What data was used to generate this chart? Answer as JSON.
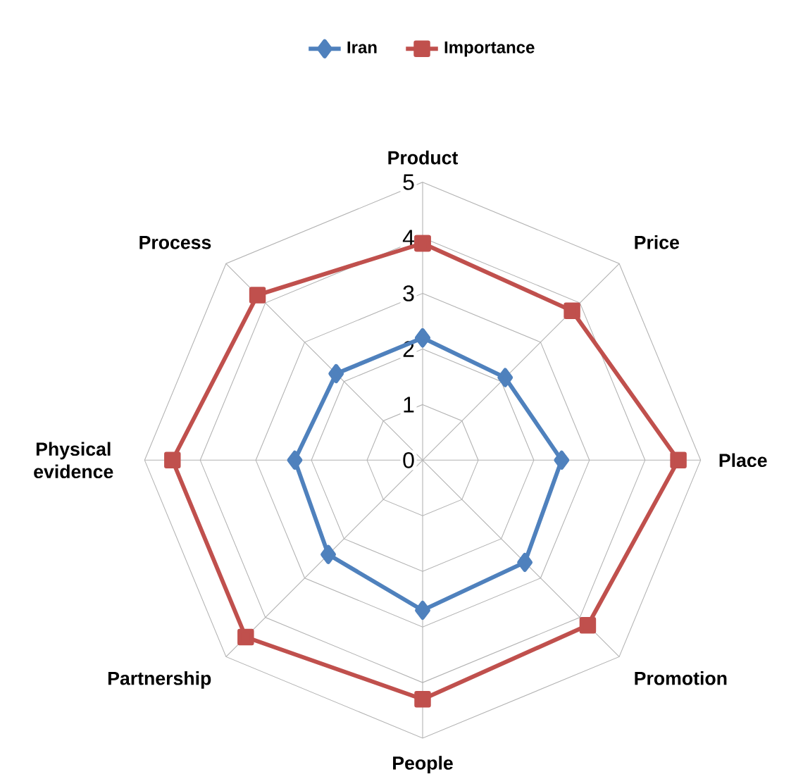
{
  "chart_data": {
    "type": "radar",
    "categories": [
      "Product",
      "Price",
      "Place",
      "Promotion",
      "People",
      "Partnership",
      "Physical evidence",
      "Process"
    ],
    "series": [
      {
        "name": "Iran",
        "color": "#4f81bd",
        "marker": "diamond",
        "values": [
          2.2,
          2.1,
          2.5,
          2.6,
          2.7,
          2.4,
          2.3,
          2.2
        ]
      },
      {
        "name": "Importance",
        "color": "#c0504d",
        "marker": "square",
        "values": [
          3.9,
          3.8,
          4.6,
          4.2,
          4.3,
          4.5,
          4.5,
          4.2
        ]
      }
    ],
    "ylim": [
      0,
      5
    ],
    "yticks": [
      0,
      1,
      2,
      3,
      4,
      5
    ],
    "grid": true,
    "legend": "top"
  }
}
